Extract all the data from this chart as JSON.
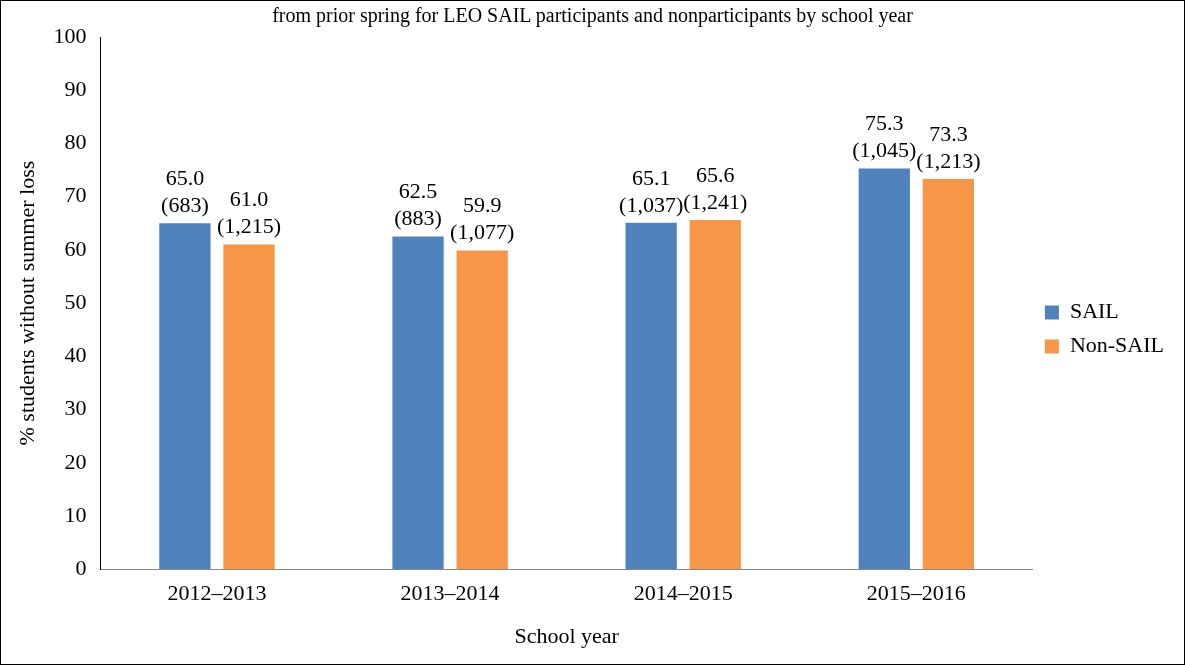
{
  "chart_data": {
    "type": "bar",
    "title": "from prior spring for LEO SAIL participants and nonparticipants by school year",
    "xlabel": "School year",
    "ylabel": "% students without summer loss",
    "categories": [
      "2012–2013",
      "2013–2014",
      "2014–2015",
      "2015–2016"
    ],
    "series": [
      {
        "name": "SAIL",
        "color": "#4f81bd",
        "values": [
          65.0,
          62.5,
          65.1,
          75.3
        ],
        "value_labels": [
          "65.0\n(683)",
          "62.5\n(883)",
          "65.1\n(1,037)",
          "75.3\n(1,045)"
        ]
      },
      {
        "name": "Non-SAIL",
        "color": "#f79646",
        "values": [
          61.0,
          59.9,
          65.6,
          73.3
        ],
        "value_labels": [
          "61.0\n(1,215)",
          "59.9\n(1,077)",
          "65.6\n(1,241)",
          "73.3\n(1,213)"
        ]
      }
    ],
    "ylim": [
      0,
      100
    ],
    "yticks": [
      0,
      10,
      20,
      30,
      40,
      50,
      60,
      70,
      80,
      90,
      100
    ],
    "grid": false,
    "legend": "right"
  }
}
